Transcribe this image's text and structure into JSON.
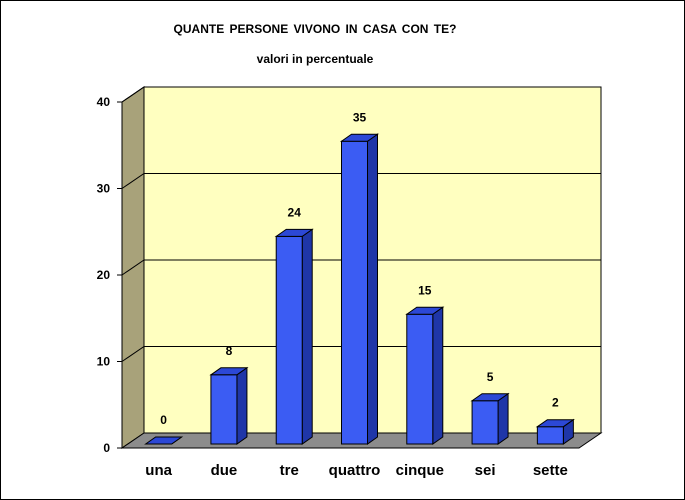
{
  "colors": {
    "wall": "#ffffc0",
    "side_wall": "#a8a27a",
    "floor": "#8c8c8c",
    "bar_front": "#3b5cf3",
    "bar_top": "#2c48d6",
    "bar_side": "#1f36a8",
    "gridline": "#000000"
  },
  "chart_data": {
    "type": "bar",
    "title": "QUANTE  PERSONE  VIVONO IN CASA CON TE?",
    "subtitle": "valori in percentuale",
    "categories": [
      "una",
      "due",
      "tre",
      "quattro",
      "cinque",
      "sei",
      "sette"
    ],
    "values": [
      0,
      8,
      24,
      35,
      15,
      5,
      2
    ],
    "data_labels": [
      "0",
      "8",
      "24",
      "35",
      "15",
      "5",
      "2"
    ],
    "ylim": [
      0,
      40
    ],
    "yticks": [
      "0",
      "10",
      "20",
      "30",
      "40"
    ],
    "grid": true,
    "legend": "none",
    "style": "3d"
  }
}
